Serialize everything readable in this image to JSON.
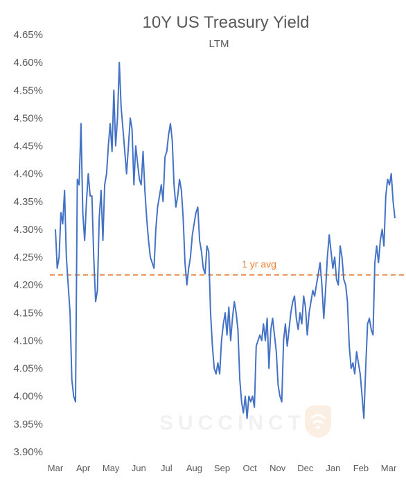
{
  "watermark": "SUCCINCT",
  "chart_data": {
    "type": "line",
    "title": "10Y US Treasury Yield",
    "subtitle": "LTM",
    "xlabel": "",
    "ylabel": "",
    "ylim": [
      3.9,
      4.65
    ],
    "y_ticks": [
      "4.65%",
      "4.60%",
      "4.55%",
      "4.50%",
      "4.45%",
      "4.40%",
      "4.35%",
      "4.30%",
      "4.25%",
      "4.20%",
      "4.15%",
      "4.10%",
      "4.05%",
      "4.00%",
      "3.95%",
      "3.90%"
    ],
    "x_ticks": [
      "Mar",
      "Apr",
      "May",
      "Jun",
      "Jul",
      "Aug",
      "Sep",
      "Oct",
      "Nov",
      "Dec",
      "Jan",
      "Feb",
      "Mar"
    ],
    "grid": false,
    "series_color": "#4472c4",
    "avg_color": "#ed7d31",
    "average": {
      "label": "1 yr avg",
      "value": 4.218
    },
    "series": [
      {
        "values": [
          4.3,
          4.23,
          4.25,
          4.33,
          4.31,
          4.37,
          4.25,
          4.2,
          4.15,
          4.03,
          4.0,
          3.99,
          4.39,
          4.38,
          4.49,
          4.33,
          4.28,
          4.35,
          4.4,
          4.36,
          4.36,
          4.25,
          4.17,
          4.19,
          4.32,
          4.37,
          4.28,
          4.38,
          4.4,
          4.45,
          4.49,
          4.44,
          4.55,
          4.45,
          4.5,
          4.6,
          4.52,
          4.48,
          4.44,
          4.4,
          4.45,
          4.5,
          4.48,
          4.38,
          4.45,
          4.42,
          4.39,
          4.38,
          4.44,
          4.37,
          4.32,
          4.28,
          4.25,
          4.24,
          4.23,
          4.3,
          4.34,
          4.36,
          4.38,
          4.35,
          4.43,
          4.44,
          4.47,
          4.49,
          4.46,
          4.38,
          4.34,
          4.36,
          4.39,
          4.37,
          4.32,
          4.24,
          4.2,
          4.23,
          4.25,
          4.29,
          4.31,
          4.33,
          4.34,
          4.28,
          4.26,
          4.23,
          4.22,
          4.27,
          4.26,
          4.15,
          4.09,
          4.05,
          4.04,
          4.06,
          4.04,
          4.1,
          4.13,
          4.15,
          4.11,
          4.16,
          4.1,
          4.14,
          4.17,
          4.15,
          4.12,
          4.03,
          3.99,
          3.97,
          4.0,
          3.96,
          4.0,
          3.99,
          4.0,
          3.98,
          4.09,
          4.1,
          4.11,
          4.1,
          4.13,
          4.1,
          4.14,
          4.05,
          4.12,
          4.14,
          4.11,
          4.08,
          4.02,
          4.0,
          3.99,
          4.1,
          4.13,
          4.09,
          4.12,
          4.15,
          4.17,
          4.18,
          4.14,
          4.12,
          4.15,
          4.13,
          4.18,
          4.16,
          4.11,
          4.15,
          4.17,
          4.19,
          4.18,
          4.2,
          4.22,
          4.24,
          4.2,
          4.14,
          4.19,
          4.25,
          4.29,
          4.26,
          4.23,
          4.25,
          4.21,
          4.2,
          4.27,
          4.25,
          4.21,
          4.2,
          4.17,
          4.09,
          4.05,
          4.06,
          4.04,
          4.08,
          4.06,
          4.04,
          4.0,
          3.96,
          4.05,
          4.13,
          4.14,
          4.12,
          4.11,
          4.24,
          4.27,
          4.24,
          4.28,
          4.3,
          4.27,
          4.36,
          4.39,
          4.38,
          4.4,
          4.35,
          4.32
        ]
      }
    ]
  }
}
